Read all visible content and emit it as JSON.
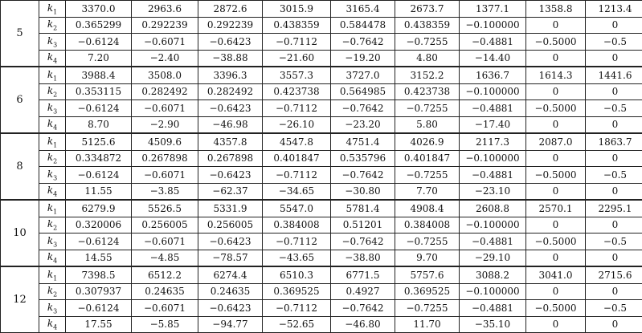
{
  "groups": [
    {
      "label": "5",
      "rows": [
        {
          "k": "k",
          "sub": "1",
          "values": [
            "3370.0",
            "2963.6",
            "2872.6",
            "3015.9",
            "3165.4",
            "2673.7",
            "1377.1",
            "1358.8",
            "1213.4"
          ]
        },
        {
          "k": "k",
          "sub": "2",
          "values": [
            "0.365299",
            "0.292239",
            "0.292239",
            "0.438359",
            "0.584478",
            "0.438359",
            "−0.100000",
            "0",
            "0"
          ]
        },
        {
          "k": "k",
          "sub": "3",
          "values": [
            "−0.6124",
            "−0.6071",
            "−0.6423",
            "−0.7112",
            "−0.7642",
            "−0.7255",
            "−0.4881",
            "−0.5000",
            "−0.5"
          ]
        },
        {
          "k": "k",
          "sub": "4",
          "values": [
            "7.20",
            "−2.40",
            "−38.88",
            "−21.60",
            "−19.20",
            "4.80",
            "−14.40",
            "0",
            "0"
          ]
        }
      ]
    },
    {
      "label": "6",
      "rows": [
        {
          "k": "k",
          "sub": "1",
          "values": [
            "3988.4",
            "3508.0",
            "3396.3",
            "3557.3",
            "3727.0",
            "3152.2",
            "1636.7",
            "1614.3",
            "1441.6"
          ]
        },
        {
          "k": "k",
          "sub": "2",
          "values": [
            "0.353115",
            "0.282492",
            "0.282492",
            "0.423738",
            "0.564985",
            "0.423738",
            "−0.100000",
            "0",
            "0"
          ]
        },
        {
          "k": "k",
          "sub": "3",
          "values": [
            "−0.6124",
            "−0.6071",
            "−0.6423",
            "−0.7112",
            "−0.7642",
            "−0.7255",
            "−0.4881",
            "−0.5000",
            "−0.5"
          ]
        },
        {
          "k": "k",
          "sub": "4",
          "values": [
            "8.70",
            "−2.90",
            "−46.98",
            "−26.10",
            "−23.20",
            "5.80",
            "−17.40",
            "0",
            "0"
          ]
        }
      ]
    },
    {
      "label": "8",
      "rows": [
        {
          "k": "k",
          "sub": "1",
          "values": [
            "5125.6",
            "4509.6",
            "4357.8",
            "4547.8",
            "4751.4",
            "4026.9",
            "2117.3",
            "2087.0",
            "1863.7"
          ]
        },
        {
          "k": "k",
          "sub": "2",
          "values": [
            "0.334872",
            "0.267898",
            "0.267898",
            "0.401847",
            "0.535796",
            "0.401847",
            "−0.100000",
            "0",
            "0"
          ]
        },
        {
          "k": "k",
          "sub": "3",
          "values": [
            "−0.6124",
            "−0.6071",
            "−0.6423",
            "−0.7112",
            "−0.7642",
            "−0.7255",
            "−0.4881",
            "−0.5000",
            "−0.5"
          ]
        },
        {
          "k": "k",
          "sub": "4",
          "values": [
            "11.55",
            "−3.85",
            "−62.37",
            "−34.65",
            "−30.80",
            "7.70",
            "−23.10",
            "0",
            "0"
          ]
        }
      ]
    },
    {
      "label": "10",
      "rows": [
        {
          "k": "k",
          "sub": "1",
          "values": [
            "6279.9",
            "5526.5",
            "5331.9",
            "5547.0",
            "5781.4",
            "4908.4",
            "2608.8",
            "2570.1",
            "2295.1"
          ]
        },
        {
          "k": "k",
          "sub": "2",
          "values": [
            "0.320006",
            "0.256005",
            "0.256005",
            "0.384008",
            "0.51201",
            "0.384008",
            "−0.100000",
            "0",
            "0"
          ]
        },
        {
          "k": "k",
          "sub": "3",
          "values": [
            "−0.6124",
            "−0.6071",
            "−0.6423",
            "−0.7112",
            "−0.7642",
            "−0.7255",
            "−0.4881",
            "−0.5000",
            "−0.5"
          ]
        },
        {
          "k": "k",
          "sub": "4",
          "values": [
            "14.55",
            "−4.85",
            "−78.57",
            "−43.65",
            "−38.80",
            "9.70",
            "−29.10",
            "0",
            "0"
          ]
        }
      ]
    },
    {
      "label": "12",
      "rows": [
        {
          "k": "k",
          "sub": "1",
          "values": [
            "7398.5",
            "6512.2",
            "6274.4",
            "6510.3",
            "6771.5",
            "5757.6",
            "3088.2",
            "3041.0",
            "2715.6"
          ]
        },
        {
          "k": "k",
          "sub": "2",
          "values": [
            "0.307937",
            "0.24635",
            "0.24635",
            "0.369525",
            "0.4927",
            "0.369525",
            "−0.100000",
            "0",
            "0"
          ]
        },
        {
          "k": "k",
          "sub": "3",
          "values": [
            "−0.6124",
            "−0.6071",
            "−0.6423",
            "−0.7112",
            "−0.7642",
            "−0.7255",
            "−0.4881",
            "−0.5000",
            "−0.5"
          ]
        },
        {
          "k": "k",
          "sub": "4",
          "values": [
            "17.55",
            "−5.85",
            "−94.77",
            "−52.65",
            "−46.80",
            "11.70",
            "−35.10",
            "0",
            "0"
          ]
        }
      ]
    }
  ]
}
